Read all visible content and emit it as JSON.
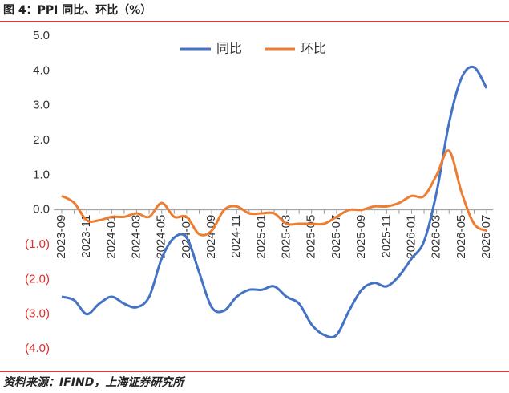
{
  "chart_data": {
    "type": "line",
    "title": "图 4：PPI 同比、环比（%）",
    "source": "资料来源：IFIND，上海证券研究所",
    "categories": [
      "2023-09",
      null,
      "2023-11",
      null,
      "2024-01",
      null,
      "2024-03",
      null,
      "2024-05",
      null,
      "2024-07",
      null,
      "2024-09",
      null,
      "2024-11",
      null,
      "2025-01",
      null,
      "2025-03",
      null,
      "2025-05",
      null,
      "2025-07",
      null,
      "2025-09",
      null,
      "2025-11",
      null,
      "2026-01",
      null,
      "2026-03",
      null,
      "2026-05",
      null,
      "2026-07"
    ],
    "series": [
      {
        "name": "同比",
        "color": "#4472c4",
        "values": [
          -2.5,
          -2.6,
          -3.0,
          -2.7,
          -2.5,
          -2.7,
          -2.8,
          -2.5,
          -1.4,
          -0.8,
          -0.8,
          -1.8,
          -2.8,
          -2.9,
          -2.5,
          -2.3,
          -2.3,
          -2.2,
          -2.5,
          -2.7,
          -3.3,
          -3.6,
          -3.6,
          -2.9,
          -2.3,
          -2.1,
          -2.2,
          -1.9,
          -1.4,
          -0.9,
          0.5,
          2.5,
          3.8,
          4.1,
          3.5
        ]
      },
      {
        "name": "环比",
        "color": "#ed7d31",
        "values": [
          0.4,
          0.2,
          -0.3,
          -0.3,
          -0.2,
          -0.2,
          -0.1,
          -0.2,
          0.2,
          -0.2,
          -0.2,
          -0.7,
          -0.6,
          0.0,
          0.1,
          -0.1,
          -0.1,
          -0.1,
          -0.4,
          -0.4,
          -0.4,
          -0.4,
          -0.2,
          0.0,
          0.0,
          0.1,
          0.1,
          0.2,
          0.4,
          0.4,
          1.0,
          1.7,
          0.5,
          -0.4,
          -0.6
        ]
      }
    ],
    "ylim": [
      -4,
      5
    ],
    "yticks": [
      {
        "value": 5,
        "label": "5.0"
      },
      {
        "value": 4,
        "label": "4.0"
      },
      {
        "value": 3,
        "label": "3.0"
      },
      {
        "value": 2,
        "label": "2.0"
      },
      {
        "value": 1,
        "label": "1.0"
      },
      {
        "value": 0,
        "label": "0.0"
      },
      {
        "value": -1,
        "label": "(1.0)"
      },
      {
        "value": -2,
        "label": "(2.0)"
      },
      {
        "value": -3,
        "label": "(3.0)"
      },
      {
        "value": -4,
        "label": "(4.0)"
      }
    ],
    "negative_tick_color": "#e0302c",
    "legend": "top",
    "grid": false
  }
}
